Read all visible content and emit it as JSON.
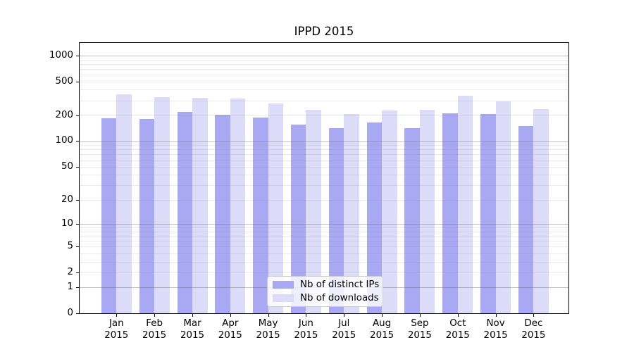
{
  "chart_data": {
    "type": "bar",
    "title": "IPPD 2015",
    "categories": [
      "Jan 2015",
      "Feb 2015",
      "Mar 2015",
      "Apr 2015",
      "May 2015",
      "Jun 2015",
      "Jul 2015",
      "Aug 2015",
      "Sep 2015",
      "Oct 2015",
      "Nov 2015",
      "Dec 2015"
    ],
    "x_tick_top": [
      "Jan",
      "Feb",
      "Mar",
      "Apr",
      "May",
      "Jun",
      "Jul",
      "Aug",
      "Sep",
      "Oct",
      "Nov",
      "Dec"
    ],
    "x_tick_bottom": "2015",
    "series": [
      {
        "name": "Nb of distinct IPs",
        "color": "#a9a9f3",
        "values": [
          185,
          182,
          220,
          204,
          190,
          155,
          142,
          165,
          143,
          213,
          207,
          150
        ]
      },
      {
        "name": "Nb of downloads",
        "color": "#dcdcf8",
        "values": [
          353,
          329,
          323,
          315,
          276,
          233,
          208,
          227,
          234,
          340,
          291,
          239
        ]
      }
    ],
    "yaxis": {
      "scale": "log10(value+1)",
      "tick_values": [
        0,
        1,
        2,
        5,
        10,
        20,
        50,
        100,
        200,
        500,
        1000
      ],
      "major_grid_values": [
        1,
        10,
        100,
        1000
      ],
      "range": [
        0,
        1400
      ],
      "grid": true
    },
    "legend": {
      "position": "lower center"
    }
  },
  "colors": {
    "background": "#ffffff",
    "axis_spine": "#000000",
    "text": "#000000",
    "grid_major": "#c6c6c6",
    "grid_minor": "#ececec",
    "legend_border": "#cccccc"
  }
}
